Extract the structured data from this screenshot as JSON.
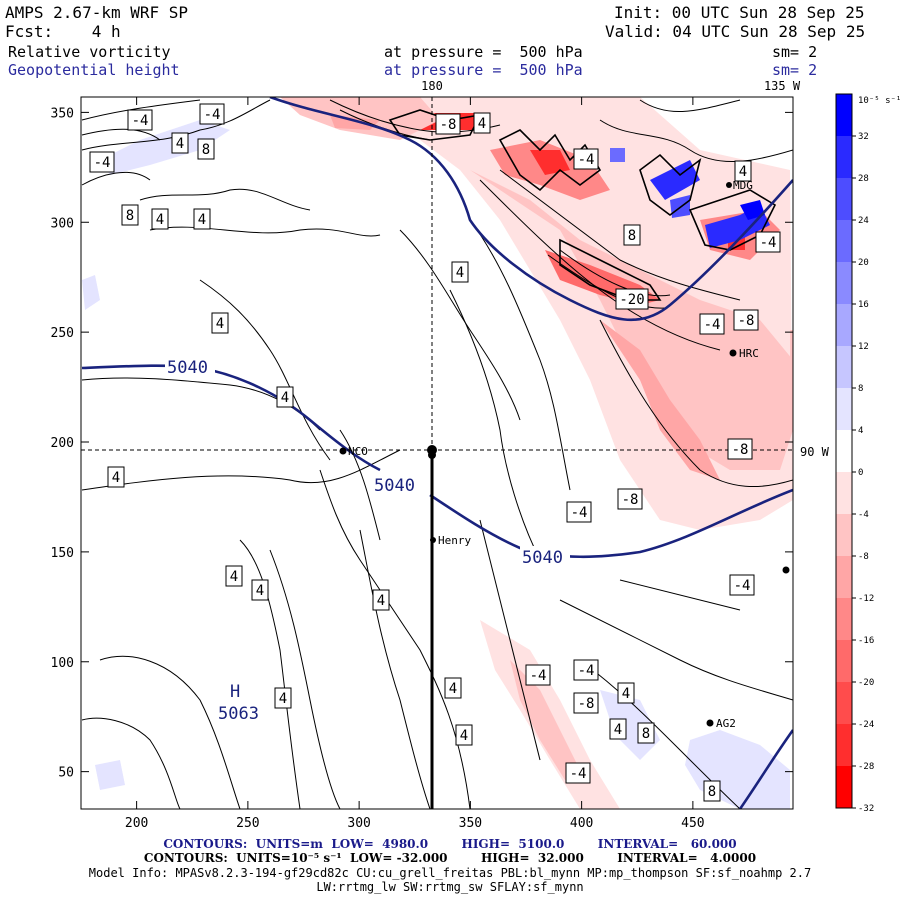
{
  "header": {
    "model": "AMPS 2.67-km WRF SP",
    "init": "Init: 00 UTC Sun 28 Sep 25",
    "fcst": "Fcst:    4 h",
    "valid": "Valid: 04 UTC Sun 28 Sep 25",
    "field1": "Relative vorticity",
    "field1_level": "at pressure =  500 hPa",
    "field1_sm": "sm= 2",
    "field2": "Geopotential height",
    "field2_level": "at pressure =  500 hPa",
    "field2_sm": "sm= 2"
  },
  "map_labels": {
    "top_lon_a": "180",
    "top_lon_b": "135 W",
    "right_lon": "90 W",
    "stations": [
      "NCO",
      "Henry",
      "MDG",
      "HRC",
      "AG2"
    ],
    "high_label": "H",
    "high_value": "5063",
    "height_labels": [
      "5040",
      "5040",
      "5040"
    ],
    "vort_box_labels": [
      "-4",
      "-4",
      "-4",
      "4",
      "8",
      "8",
      "4",
      "4",
      "4",
      "4",
      "4",
      "4",
      "4",
      "4",
      "4",
      "4",
      "4",
      "4",
      "-8",
      "4",
      "-4",
      "4",
      "8",
      "-4",
      "-20",
      "-4",
      "-8",
      "-8",
      "-8",
      "-4",
      "-4",
      "-4",
      "-4",
      "-8",
      "4",
      "4",
      "8",
      "-4",
      "8"
    ]
  },
  "chart_data": {
    "type": "contour",
    "x_ticks": [
      "200",
      "250",
      "300",
      "350",
      "400",
      "450"
    ],
    "y_ticks": [
      "350",
      "300",
      "250",
      "200",
      "150",
      "100",
      "50"
    ],
    "xlim": [
      175,
      495
    ],
    "ylim": [
      33,
      357
    ],
    "colorbar": {
      "unit": "10⁻⁵ s⁻¹",
      "labels": [
        "32",
        "28",
        "24",
        "20",
        "16",
        "12",
        "8",
        "4",
        "0",
        "-4",
        "-8",
        "-12",
        "-16",
        "-20",
        "-24",
        "-28",
        "-32"
      ],
      "colors": [
        "#0000ff",
        "#2a2aff",
        "#4d4dff",
        "#6b6bff",
        "#8a8aff",
        "#a8a8ff",
        "#c6c6ff",
        "#e4e4ff",
        "#ffffff",
        "#ffe2e2",
        "#ffc4c4",
        "#ffa6a6",
        "#ff8888",
        "#ff6a6a",
        "#ff4c4c",
        "#ff2e2e",
        "#ff0000"
      ]
    }
  },
  "footer": {
    "line1": "CONTOURS:  UNITS=m  LOW=  4980.0        HIGH=  5100.0        INTERVAL=   60.000",
    "line2": "CONTOURS:  UNITS=10⁻⁵ s⁻¹  LOW= -32.000        HIGH=  32.000        INTERVAL=   4.0000",
    "line3": "Model Info: MPASv8.2.3-194-gf29cd82c CU:cu_grell_freitas PBL:bl_mynn MP:mp_thompson SF:sf_noahmp 2.7",
    "line4": "LW:rrtmg_lw SW:rrtmg_sw SFLAY:sf_mynn"
  }
}
